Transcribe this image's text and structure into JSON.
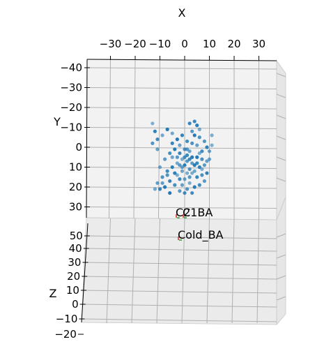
{
  "chart_data": {
    "type": "scatter3d",
    "xlabel": "X",
    "ylabel": "Y",
    "zlabel": "Z",
    "x_ticks": [
      "−30",
      "−20",
      "−10",
      "0",
      "10",
      "20",
      "30"
    ],
    "y_ticks": [
      "−40",
      "−30",
      "−20",
      "−10",
      "0",
      "10",
      "20",
      "30"
    ],
    "z_ticks": [
      "50",
      "40",
      "30",
      "20",
      "10",
      "0",
      "−10",
      "−20"
    ],
    "xlim": [
      -38,
      38
    ],
    "ylim": [
      -40,
      38
    ],
    "zlim": [
      -20,
      55
    ],
    "grid": true,
    "point_color": "#1f77b4",
    "series": [
      {
        "points": [
          {
            "x": -13,
            "y": -12
          },
          {
            "x": -12,
            "y": -8
          },
          {
            "x": -11,
            "y": -4
          },
          {
            "x": -13,
            "y": -2
          },
          {
            "x": -11,
            "y": 1
          },
          {
            "x": -9,
            "y": -6
          },
          {
            "x": -7,
            "y": -9
          },
          {
            "x": -5,
            "y": -2
          },
          {
            "x": -6,
            "y": 3
          },
          {
            "x": -3,
            "y": 5
          },
          {
            "x": -2,
            "y": -1
          },
          {
            "x": -1,
            "y": 6
          },
          {
            "x": 0,
            "y": 9
          },
          {
            "x": 1,
            "y": 4
          },
          {
            "x": 2,
            "y": 11
          },
          {
            "x": 3,
            "y": 8
          },
          {
            "x": 4,
            "y": 12
          },
          {
            "x": 5,
            "y": 5
          },
          {
            "x": 6,
            "y": 10
          },
          {
            "x": 7,
            "y": 2
          },
          {
            "x": 8,
            "y": -3
          },
          {
            "x": 9,
            "y": 7
          },
          {
            "x": 6,
            "y": -9
          },
          {
            "x": 4,
            "y": -6
          },
          {
            "x": 2,
            "y": -12
          },
          {
            "x": 3,
            "y": -2
          },
          {
            "x": 1,
            "y": 1
          },
          {
            "x": -1,
            "y": 12
          },
          {
            "x": -3,
            "y": 14
          },
          {
            "x": -5,
            "y": 10
          },
          {
            "x": -7,
            "y": 12
          },
          {
            "x": -9,
            "y": 15
          },
          {
            "x": -11,
            "y": 18
          },
          {
            "x": -12,
            "y": 21
          },
          {
            "x": -8,
            "y": 20
          },
          {
            "x": -6,
            "y": 17
          },
          {
            "x": -4,
            "y": 19
          },
          {
            "x": -2,
            "y": 22
          },
          {
            "x": 0,
            "y": 16
          },
          {
            "x": 2,
            "y": 18
          },
          {
            "x": 4,
            "y": 20
          },
          {
            "x": 5,
            "y": 15
          },
          {
            "x": 7,
            "y": 14
          },
          {
            "x": 8,
            "y": 9
          },
          {
            "x": 10,
            "y": 6
          },
          {
            "x": 11,
            "y": -1
          },
          {
            "x": 9,
            "y": 13
          },
          {
            "x": 3,
            "y": 23
          },
          {
            "x": 1,
            "y": 21
          },
          {
            "x": -1,
            "y": 19
          },
          {
            "x": -3,
            "y": 8
          },
          {
            "x": -4,
            "y": 1
          },
          {
            "x": -2,
            "y": 3
          },
          {
            "x": 0,
            "y": 5
          },
          {
            "x": 1,
            "y": 7
          },
          {
            "x": 2,
            "y": 2
          },
          {
            "x": 3,
            "y": 13
          },
          {
            "x": 5,
            "y": -11
          },
          {
            "x": 4,
            "y": -13
          },
          {
            "x": 6,
            "y": -5
          },
          {
            "x": -8,
            "y": 6
          },
          {
            "x": -10,
            "y": 10
          },
          {
            "x": -6,
            "y": 23
          },
          {
            "x": -10,
            "y": 21
          },
          {
            "x": 0,
            "y": 23
          },
          {
            "x": 2,
            "y": 15
          },
          {
            "x": -1,
            "y": 10
          },
          {
            "x": 1,
            "y": 13
          },
          {
            "x": 3,
            "y": 5
          },
          {
            "x": 5,
            "y": 8
          },
          {
            "x": 7,
            "y": 6
          },
          {
            "x": 8,
            "y": 17
          },
          {
            "x": 10,
            "y": 2
          },
          {
            "x": 11,
            "y": -6
          },
          {
            "x": -4,
            "y": 13
          },
          {
            "x": -2,
            "y": 16
          },
          {
            "x": -7,
            "y": 14
          },
          {
            "x": -9,
            "y": 18
          },
          {
            "x": -5,
            "y": -7
          },
          {
            "x": -3,
            "y": -4
          },
          {
            "x": -1,
            "y": -6
          },
          {
            "x": 1,
            "y": -3
          },
          {
            "x": 3,
            "y": -8
          },
          {
            "x": 5,
            "y": -1
          },
          {
            "x": 6,
            "y": 3
          },
          {
            "x": 4,
            "y": 9
          },
          {
            "x": 2,
            "y": 6
          },
          {
            "x": 0,
            "y": 1
          },
          {
            "x": -2,
            "y": 9
          },
          {
            "x": -5,
            "y": 5
          },
          {
            "x": 7,
            "y": 11
          },
          {
            "x": 9,
            "y": 0
          },
          {
            "x": 6,
            "y": 19
          }
        ]
      }
    ],
    "annotations": [
      {
        "label": "C2",
        "x": -2.5,
        "y": 38
      },
      {
        "label": "C1BA",
        "x": 0.5,
        "y": 38
      },
      {
        "label": "Cold_BA",
        "x": -2,
        "y": 50
      }
    ]
  }
}
